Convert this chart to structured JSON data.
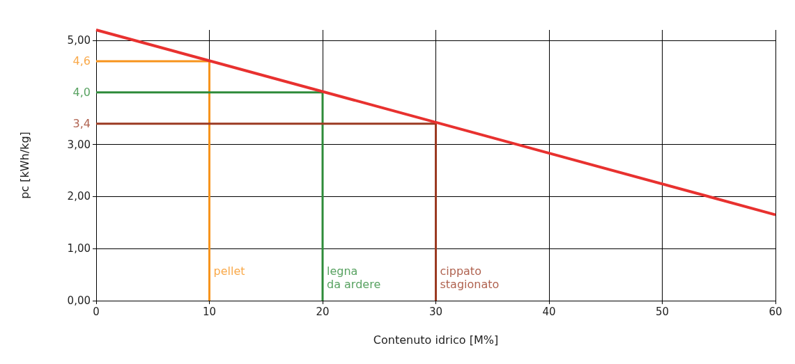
{
  "chart_data": {
    "type": "line",
    "xlabel": "Contenuto idrico [M%]",
    "ylabel": "pc [kWh/kg]",
    "series": [
      {
        "color": "#e8312f",
        "x": [
          0,
          60
        ],
        "values": [
          5.2,
          1.65
        ]
      }
    ],
    "xlim": [
      0,
      60
    ],
    "xticks": [
      0,
      10,
      20,
      30,
      40,
      50,
      60
    ],
    "ylim": [
      0,
      5.2
    ],
    "yticks": [
      {
        "value": 0,
        "label": "0,00"
      },
      {
        "value": 1,
        "label": "1,00"
      },
      {
        "value": 2,
        "label": "2,00"
      },
      {
        "value": 3,
        "label": "3,00"
      },
      {
        "value": 5,
        "label": "5,00"
      }
    ],
    "ref_lines": [
      {
        "axis": "y",
        "value": 4.6,
        "label": "4,6",
        "color": "#f7941d"
      },
      {
        "axis": "x",
        "value": 10,
        "label": "pellet",
        "color": "#f7941d"
      },
      {
        "axis": "y",
        "value": 4.0,
        "label": "4,0",
        "color": "#2e8b3a"
      },
      {
        "axis": "x",
        "value": 20,
        "label": "legna\nda ardere",
        "color": "#2e8b3a"
      },
      {
        "axis": "y",
        "value": 3.4,
        "label": "3,4",
        "color": "#9b3a22"
      },
      {
        "axis": "x",
        "value": 30,
        "label": "cippato\nstagionato",
        "color": "#9b3a22"
      }
    ],
    "grid": true,
    "marker": "none",
    "line_style": "solid"
  }
}
